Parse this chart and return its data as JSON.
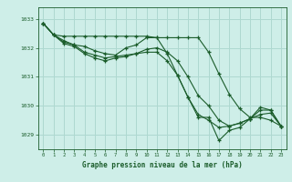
{
  "title": "Graphe pression niveau de la mer (hPa)",
  "bg_color": "#ceeee8",
  "grid_color": "#aed8d0",
  "line_color": "#1a5c2a",
  "xlim": [
    -0.5,
    23.5
  ],
  "ylim": [
    1028.5,
    1033.4
  ],
  "yticks": [
    1029,
    1030,
    1031,
    1032,
    1033
  ],
  "xticks": [
    0,
    1,
    2,
    3,
    4,
    5,
    6,
    7,
    8,
    9,
    10,
    11,
    12,
    13,
    14,
    15,
    16,
    17,
    18,
    19,
    20,
    21,
    22,
    23
  ],
  "series": [
    [
      1032.85,
      1032.45,
      1032.4,
      1032.4,
      1032.4,
      1032.4,
      1032.4,
      1032.4,
      1032.4,
      1032.4,
      1032.4,
      1032.35,
      1032.35,
      1032.35,
      1032.35,
      1032.35,
      1031.85,
      1031.1,
      1030.4,
      1029.9,
      1029.6,
      1029.6,
      1029.5,
      1029.3
    ],
    [
      1032.85,
      1032.45,
      1032.25,
      1032.1,
      1032.05,
      1031.9,
      1031.8,
      1031.75,
      1032.0,
      1032.1,
      1032.35,
      1032.35,
      1031.8,
      1031.05,
      1030.3,
      1029.6,
      1029.6,
      1028.8,
      1029.15,
      1029.25,
      1029.55,
      1029.95,
      1029.85,
      1029.3
    ],
    [
      1032.85,
      1032.45,
      1032.2,
      1032.1,
      1031.85,
      1031.75,
      1031.65,
      1031.7,
      1031.75,
      1031.8,
      1031.85,
      1031.85,
      1031.55,
      1031.05,
      1030.3,
      1029.7,
      1029.5,
      1029.25,
      1029.3,
      1029.4,
      1029.55,
      1029.7,
      1029.75,
      1029.3
    ],
    [
      1032.85,
      1032.45,
      1032.15,
      1032.05,
      1031.8,
      1031.65,
      1031.55,
      1031.65,
      1031.7,
      1031.8,
      1031.95,
      1032.0,
      1031.85,
      1031.55,
      1031.0,
      1030.35,
      1030.0,
      1029.5,
      1029.3,
      1029.4,
      1029.55,
      1029.85,
      1029.85,
      1029.3
    ]
  ]
}
